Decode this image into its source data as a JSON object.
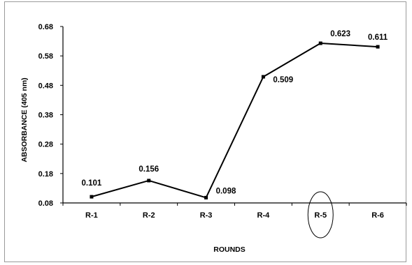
{
  "chart_data": {
    "type": "line",
    "title": "",
    "xlabel": "ROUNDS",
    "ylabel": "ABSORBANCE (405 nm)",
    "categories": [
      "R-1",
      "R-2",
      "R-3",
      "R-4",
      "R-5",
      "R-6"
    ],
    "series": [
      {
        "values": [
          0.101,
          0.156,
          0.098,
          0.509,
          0.623,
          0.611
        ]
      }
    ],
    "data_labels": [
      "0.101",
      "0.156",
      "0.098",
      "0.509",
      "0.623",
      "0.611"
    ],
    "yticks": [
      "0.08",
      "0.18",
      "0.28",
      "0.38",
      "0.48",
      "0.58",
      "0.68"
    ],
    "ytick_values": [
      0.08,
      0.18,
      0.28,
      0.38,
      0.48,
      0.58,
      0.68
    ],
    "ylim": [
      0.08,
      0.68
    ],
    "grid": false,
    "legend": "none",
    "highlighted_category": "R-5",
    "line_color": "#000000",
    "marker_color": "#000000"
  }
}
